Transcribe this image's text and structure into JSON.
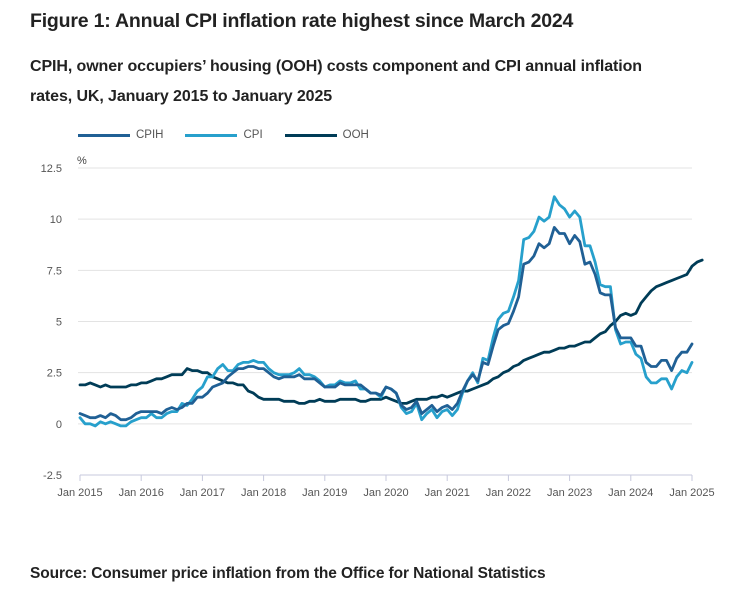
{
  "title": "Figure 1: Annual CPI inflation rate highest since March 2024",
  "subtitle": "CPIH, owner occupiers’ housing (OOH) costs component and CPI annual inflation rates, UK, January 2015 to January 2025",
  "source": "Source: Consumer price inflation from the Office for National Statistics",
  "legend": [
    {
      "name": "CPIH",
      "color": "#206095"
    },
    {
      "name": "CPI",
      "color": "#27a0cc"
    },
    {
      "name": "OOH",
      "color": "#003c57"
    }
  ],
  "chart_data": {
    "type": "line",
    "title": "Figure 1: Annual CPI inflation rate highest since March 2024",
    "subtitle": "CPIH, owner occupiers’ housing (OOH) costs component and CPI annual inflation rates, UK, January 2015 to January 2025",
    "xlabel": "",
    "ylabel": "%",
    "ylim": [
      -2.5,
      12.5
    ],
    "yticks": [
      -2.5,
      0,
      2.5,
      5,
      7.5,
      10,
      12.5
    ],
    "ytick_labels": [
      "-2.5",
      "0",
      "2.5",
      "5",
      "7.5",
      "10",
      "12.5"
    ],
    "xtick_labels": [
      "Jan 2015",
      "Jan 2016",
      "Jan 2017",
      "Jan 2018",
      "Jan 2019",
      "Jan 2020",
      "Jan 2021",
      "Jan 2022",
      "Jan 2023",
      "Jan 2024",
      "Jan 2025"
    ],
    "x_start": "Jan 2015",
    "x_end": "Jan 2025",
    "frequency": "monthly",
    "grid": true,
    "legend_position": "top-left",
    "series": [
      {
        "name": "CPIH",
        "color": "#206095",
        "values": [
          0.5,
          0.4,
          0.3,
          0.3,
          0.4,
          0.3,
          0.5,
          0.4,
          0.2,
          0.2,
          0.3,
          0.5,
          0.6,
          0.6,
          0.6,
          0.6,
          0.5,
          0.7,
          0.8,
          0.7,
          0.8,
          1.0,
          1.0,
          1.3,
          1.3,
          1.5,
          1.8,
          1.9,
          2.0,
          2.3,
          2.5,
          2.7,
          2.7,
          2.8,
          2.8,
          2.7,
          2.7,
          2.5,
          2.3,
          2.2,
          2.3,
          2.3,
          2.3,
          2.4,
          2.2,
          2.2,
          2.2,
          2.0,
          1.8,
          1.8,
          1.8,
          2.0,
          1.9,
          1.9,
          1.9,
          1.9,
          1.7,
          1.5,
          1.5,
          1.4,
          1.8,
          1.7,
          1.5,
          0.9,
          0.7,
          0.8,
          1.1,
          0.5,
          0.7,
          0.9,
          0.6,
          0.8,
          0.9,
          0.7,
          1.0,
          1.6,
          2.1,
          2.4,
          2.1,
          3.0,
          2.9,
          3.8,
          4.6,
          4.8,
          4.9,
          5.5,
          6.2,
          7.8,
          7.9,
          8.2,
          8.8,
          8.6,
          8.8,
          9.6,
          9.3,
          9.3,
          8.8,
          9.2,
          8.9,
          7.8,
          7.9,
          7.3,
          6.4,
          6.3,
          6.3,
          4.7,
          4.2,
          4.2,
          4.2,
          3.8,
          3.8,
          3.0,
          2.8,
          2.8,
          3.1,
          3.1,
          2.6,
          3.2,
          3.5,
          3.5,
          3.9
        ]
      },
      {
        "name": "CPI",
        "color": "#27a0cc",
        "values": [
          0.3,
          0.0,
          0.0,
          -0.1,
          0.1,
          0.0,
          0.1,
          0.0,
          -0.1,
          -0.1,
          0.1,
          0.2,
          0.3,
          0.3,
          0.5,
          0.3,
          0.3,
          0.5,
          0.6,
          0.6,
          1.0,
          0.9,
          1.2,
          1.6,
          1.8,
          2.3,
          2.3,
          2.7,
          2.9,
          2.6,
          2.6,
          2.9,
          3.0,
          3.0,
          3.1,
          3.0,
          3.0,
          2.7,
          2.5,
          2.4,
          2.4,
          2.4,
          2.5,
          2.7,
          2.4,
          2.4,
          2.3,
          2.1,
          1.8,
          1.9,
          1.9,
          2.1,
          2.0,
          2.0,
          2.1,
          1.7,
          1.7,
          1.5,
          1.5,
          1.3,
          1.8,
          1.7,
          1.5,
          0.8,
          0.5,
          0.6,
          1.0,
          0.2,
          0.5,
          0.7,
          0.3,
          0.6,
          0.7,
          0.4,
          0.7,
          1.5,
          2.1,
          2.5,
          2.0,
          3.2,
          3.1,
          4.2,
          5.1,
          5.4,
          5.5,
          6.2,
          7.0,
          9.0,
          9.1,
          9.4,
          10.1,
          9.9,
          10.1,
          11.1,
          10.7,
          10.5,
          10.1,
          10.4,
          10.1,
          8.7,
          8.7,
          7.9,
          6.8,
          6.7,
          6.7,
          4.6,
          3.9,
          4.0,
          4.0,
          3.4,
          3.2,
          2.3,
          2.0,
          2.0,
          2.2,
          2.2,
          1.7,
          2.3,
          2.6,
          2.5,
          3.0
        ]
      },
      {
        "name": "OOH",
        "color": "#003c57",
        "values": [
          1.9,
          1.9,
          2.0,
          1.9,
          1.8,
          1.9,
          1.8,
          1.8,
          1.8,
          1.8,
          1.9,
          1.9,
          2.0,
          2.0,
          2.1,
          2.2,
          2.2,
          2.3,
          2.4,
          2.4,
          2.4,
          2.7,
          2.6,
          2.6,
          2.5,
          2.5,
          2.3,
          2.2,
          2.1,
          2.0,
          2.0,
          1.9,
          1.9,
          1.6,
          1.5,
          1.3,
          1.2,
          1.2,
          1.2,
          1.2,
          1.1,
          1.1,
          1.1,
          1.0,
          1.0,
          1.1,
          1.1,
          1.2,
          1.1,
          1.1,
          1.1,
          1.2,
          1.2,
          1.2,
          1.2,
          1.1,
          1.1,
          1.2,
          1.2,
          1.2,
          1.3,
          1.2,
          1.1,
          1.0,
          1.0,
          1.1,
          1.2,
          1.2,
          1.2,
          1.3,
          1.3,
          1.4,
          1.3,
          1.4,
          1.5,
          1.6,
          1.6,
          1.7,
          1.8,
          1.9,
          2.0,
          2.2,
          2.3,
          2.5,
          2.6,
          2.8,
          2.9,
          3.1,
          3.2,
          3.3,
          3.4,
          3.5,
          3.5,
          3.6,
          3.7,
          3.7,
          3.8,
          3.8,
          3.9,
          4.0,
          4.0,
          4.2,
          4.4,
          4.5,
          4.8,
          5.0,
          5.3,
          5.4,
          5.3,
          5.4,
          5.9,
          6.2,
          6.5,
          6.7,
          6.8,
          6.9,
          7.0,
          7.1,
          7.2,
          7.3,
          7.7,
          7.9,
          8.0
        ]
      }
    ]
  }
}
